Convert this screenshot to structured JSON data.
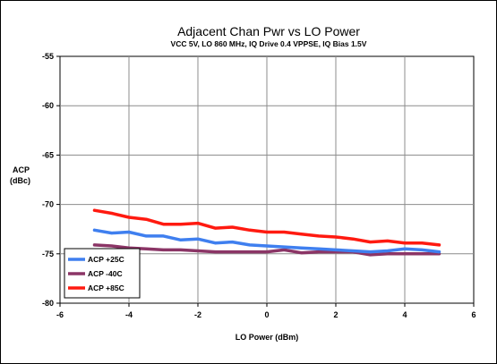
{
  "chart_data": {
    "type": "line",
    "title": "Adjacent Chan Pwr vs LO Power",
    "subtitle": "VCC 5V, LO 860 MHz, IQ Drive 0.4 VPPSE, IQ Bias 1.5V",
    "xlabel": "LO Power (dBm)",
    "ylabel": [
      "ACP",
      "(dBc)"
    ],
    "xlim": [
      -6,
      6
    ],
    "ylim": [
      -80,
      -55
    ],
    "xticks": [
      -6,
      -4,
      -2,
      0,
      2,
      4,
      6
    ],
    "yticks": [
      -55,
      -60,
      -65,
      -70,
      -75,
      -80
    ],
    "grid": true,
    "legend_position": "bottom-left",
    "series": [
      {
        "name": "ACP +25C",
        "color": "#3f7fef",
        "x": [
          -5.0,
          -4.5,
          -4.0,
          -3.5,
          -3.0,
          -2.5,
          -2.0,
          -1.5,
          -1.0,
          -0.5,
          0.0,
          0.5,
          1.0,
          1.5,
          2.0,
          2.5,
          3.0,
          3.5,
          4.0,
          4.5,
          5.0
        ],
        "y": [
          -72.6,
          -72.9,
          -72.8,
          -73.2,
          -73.2,
          -73.6,
          -73.5,
          -73.9,
          -73.8,
          -74.1,
          -74.2,
          -74.3,
          -74.4,
          -74.5,
          -74.6,
          -74.7,
          -74.8,
          -74.7,
          -74.5,
          -74.6,
          -74.8
        ]
      },
      {
        "name": "ACP -40C",
        "color": "#8b3566",
        "x": [
          -5.0,
          -4.5,
          -4.0,
          -3.5,
          -3.0,
          -2.5,
          -2.0,
          -1.5,
          -1.0,
          -0.5,
          0.0,
          0.5,
          1.0,
          1.5,
          2.0,
          2.5,
          3.0,
          3.5,
          4.0,
          4.5,
          5.0
        ],
        "y": [
          -74.1,
          -74.2,
          -74.4,
          -74.5,
          -74.6,
          -74.6,
          -74.7,
          -74.8,
          -74.8,
          -74.8,
          -74.8,
          -74.6,
          -74.9,
          -74.8,
          -74.8,
          -74.8,
          -75.1,
          -75.0,
          -75.0,
          -75.0,
          -75.0
        ]
      },
      {
        "name": "ACP +85C",
        "color": "#ff1a10",
        "x": [
          -5.0,
          -4.5,
          -4.0,
          -3.5,
          -3.0,
          -2.5,
          -2.0,
          -1.5,
          -1.0,
          -0.5,
          0.0,
          0.5,
          1.0,
          1.5,
          2.0,
          2.5,
          3.0,
          3.5,
          4.0,
          4.5,
          5.0
        ],
        "y": [
          -70.6,
          -70.9,
          -71.3,
          -71.5,
          -72.0,
          -72.0,
          -71.9,
          -72.4,
          -72.3,
          -72.6,
          -72.8,
          -72.8,
          -73.0,
          -73.2,
          -73.3,
          -73.5,
          -73.8,
          -73.7,
          -73.9,
          -73.9,
          -74.1
        ]
      }
    ]
  }
}
